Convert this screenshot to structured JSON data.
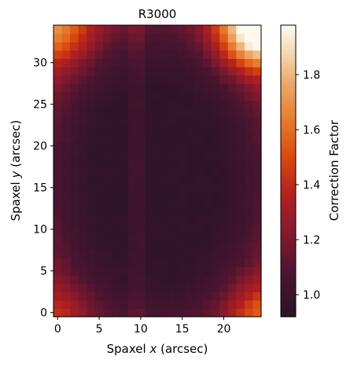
{
  "chart_data": {
    "type": "heatmap",
    "title": "R3000",
    "xlabel": {
      "prefix": "Spaxel ",
      "var": "x",
      "suffix": " (arcsec)"
    },
    "ylabel": {
      "prefix": "Spaxel ",
      "var": "y",
      "suffix": " (arcsec)"
    },
    "x_ticks": [
      0,
      5,
      10,
      15,
      20
    ],
    "y_ticks": [
      0,
      5,
      10,
      15,
      20,
      25,
      30
    ],
    "x_range": [
      -0.5,
      24.5
    ],
    "y_range": [
      -0.5,
      34.5
    ],
    "grid_size": {
      "nx": 25,
      "ny": 35
    },
    "colorbar": {
      "label": "Correction Factor",
      "vmin": 0.92,
      "vmax": 1.98,
      "ticks": [
        1.0,
        1.2,
        1.4,
        1.6,
        1.8
      ],
      "tick_labels": [
        "1.0",
        "1.2",
        "1.4",
        "1.6",
        "1.8"
      ]
    },
    "colormap_stops": [
      {
        "t": 0.0,
        "color": "#2b1426"
      },
      {
        "t": 0.15,
        "color": "#4a1530"
      },
      {
        "t": 0.3,
        "color": "#8a1a2c"
      },
      {
        "t": 0.42,
        "color": "#b3201f"
      },
      {
        "t": 0.55,
        "color": "#d94a0c"
      },
      {
        "t": 0.68,
        "color": "#e57d30"
      },
      {
        "t": 0.8,
        "color": "#eba869"
      },
      {
        "t": 0.9,
        "color": "#f2d5ae"
      },
      {
        "t": 1.0,
        "color": "#fdf9ef"
      }
    ],
    "value_model": {
      "description_free": true,
      "x_center": 12,
      "y_center": 16,
      "base": 0.955,
      "rx": 13.5,
      "ry": 19.0,
      "edge_gain": 0.3,
      "corner_peaks": [
        {
          "x": 24,
          "y": 34,
          "amp": 0.85,
          "sigma": 3.2
        },
        {
          "x": 0,
          "y": 34,
          "amp": 0.32,
          "sigma": 3.0
        },
        {
          "x": 24,
          "y": 0,
          "amp": 0.25,
          "sigma": 2.6
        },
        {
          "x": 0,
          "y": 0,
          "amp": 0.12,
          "sigma": 2.5
        }
      ],
      "vertical_stripes": [
        {
          "x": 9,
          "amp": 0.06
        },
        {
          "x": 10,
          "amp": 0.07
        }
      ]
    }
  }
}
